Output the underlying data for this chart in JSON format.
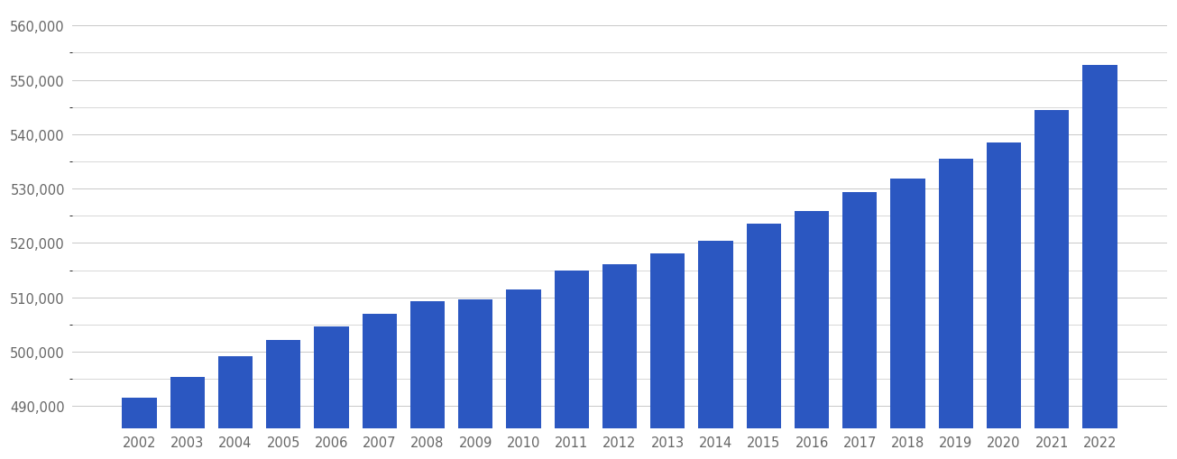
{
  "years": [
    2002,
    2003,
    2004,
    2005,
    2006,
    2007,
    2008,
    2009,
    2010,
    2011,
    2012,
    2013,
    2014,
    2015,
    2016,
    2017,
    2018,
    2019,
    2020,
    2021,
    2022
  ],
  "values": [
    491600,
    495400,
    499200,
    502200,
    504700,
    507000,
    509300,
    509700,
    511400,
    515000,
    516100,
    518100,
    520400,
    523500,
    525800,
    529400,
    531800,
    535500,
    538500,
    544500,
    552700
  ],
  "bar_color": "#2b57c1",
  "background_color": "#ffffff",
  "grid_color": "#c8c8c8",
  "tick_color": "#666666",
  "ylim_min": 486000,
  "ylim_max": 563000,
  "yticks": [
    490000,
    500000,
    510000,
    520000,
    530000,
    540000,
    550000,
    560000
  ],
  "bar_width": 0.72,
  "bar_bottom": 486000
}
